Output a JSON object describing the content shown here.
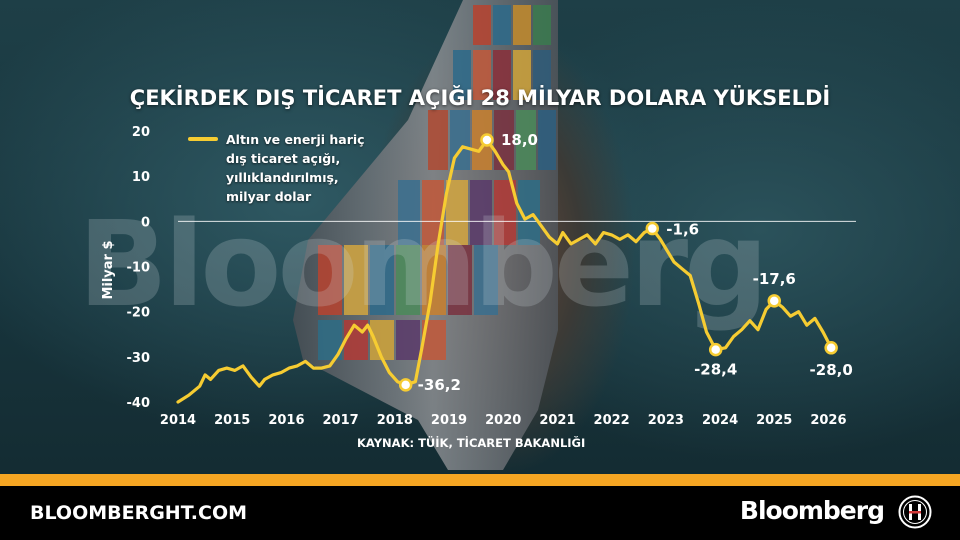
{
  "title": "ÇEKİRDEK DIŞ TİCARET AÇIĞI 28 MİLYAR DOLARA YÜKSELDİ",
  "source": "KAYNAK: TÜİK, TİCARET BAKANLIĞI",
  "watermark": "Bloomberg",
  "footer": {
    "site": "BLOOMBERGHT.COM",
    "brand": "Bloomberg"
  },
  "colors": {
    "line": "#f6cc32",
    "accent_bar": "#f5a623"
  },
  "chart_data": {
    "type": "line",
    "title": "ÇEKİRDEK DIŞ TİCARET AÇIĞI 28 MİLYAR DOLARA YÜKSELDİ",
    "ylabel": "Milyar $",
    "xlabel": "",
    "ylim": [
      -40,
      20
    ],
    "xlim": [
      2014,
      2026.25
    ],
    "yticks": [
      "20",
      "10",
      "0",
      "-10",
      "-20",
      "-30",
      "-40"
    ],
    "ytick_values": [
      20,
      10,
      0,
      -10,
      -20,
      -30,
      -40
    ],
    "xticks": [
      "2014",
      "2015",
      "2016",
      "2017",
      "2018",
      "2019",
      "2020",
      "2021",
      "2022",
      "2023",
      "2024",
      "2025",
      "2026"
    ],
    "xtick_values": [
      2014,
      2015,
      2016,
      2017,
      2018,
      2019,
      2020,
      2021,
      2022,
      2023,
      2024,
      2025,
      2026
    ],
    "grid": false,
    "legend_position": "top-left",
    "series": [
      {
        "name": "Altın ve enerji hariç dış ticaret açığı, yıllıklandırılmış, milyar dolar",
        "x": [
          2014.0,
          2014.2,
          2014.4,
          2014.5,
          2014.6,
          2014.75,
          2014.9,
          2015.05,
          2015.2,
          2015.35,
          2015.5,
          2015.6,
          2015.75,
          2015.9,
          2016.05,
          2016.2,
          2016.35,
          2016.5,
          2016.65,
          2016.8,
          2016.95,
          2017.1,
          2017.25,
          2017.4,
          2017.5,
          2017.6,
          2017.75,
          2017.9,
          2018.05,
          2018.2,
          2018.38,
          2018.5,
          2018.65,
          2018.8,
          2018.95,
          2019.1,
          2019.25,
          2019.4,
          2019.55,
          2019.7,
          2019.85,
          2020.0,
          2020.1,
          2020.25,
          2020.4,
          2020.55,
          2020.7,
          2020.85,
          2021.0,
          2021.1,
          2021.25,
          2021.4,
          2021.55,
          2021.7,
          2021.85,
          2022.0,
          2022.15,
          2022.3,
          2022.45,
          2022.6,
          2022.75,
          2022.9,
          2023.0,
          2023.15,
          2023.3,
          2023.45,
          2023.6,
          2023.75,
          2023.92,
          2024.1,
          2024.25,
          2024.4,
          2024.55,
          2024.7,
          2024.85,
          2025.0,
          2025.15,
          2025.3,
          2025.45,
          2025.6,
          2025.75,
          2025.9,
          2026.05
        ],
        "values": [
          -40.0,
          -38.5,
          -36.5,
          -34.0,
          -35.0,
          -33.0,
          -32.5,
          -33.0,
          -32.0,
          -34.5,
          -36.5,
          -35.0,
          -34.0,
          -33.5,
          -32.5,
          -32.0,
          -31.0,
          -32.5,
          -32.5,
          -32.0,
          -29.5,
          -26.0,
          -23.0,
          -24.5,
          -23.0,
          -25.5,
          -30.0,
          -33.5,
          -35.5,
          -36.2,
          -35.5,
          -28.0,
          -18.0,
          -5.0,
          6.0,
          14.0,
          16.5,
          16.0,
          15.5,
          18.0,
          15.5,
          12.5,
          11.0,
          4.0,
          0.5,
          1.5,
          -1.0,
          -3.5,
          -5.0,
          -2.5,
          -5.0,
          -4.0,
          -3.0,
          -5.0,
          -2.5,
          -3.0,
          -4.0,
          -3.0,
          -4.5,
          -2.5,
          -1.6,
          -4.0,
          -6.0,
          -9.0,
          -10.5,
          -12.0,
          -18.0,
          -24.5,
          -28.4,
          -28.0,
          -25.5,
          -24.0,
          -22.0,
          -24.0,
          -19.5,
          -17.6,
          -19.0,
          -21.0,
          -20.0,
          -23.0,
          -21.5,
          -24.5,
          -28.0
        ]
      }
    ],
    "annotations": [
      {
        "x": 2018.2,
        "y": -36.2,
        "label": "-36,2"
      },
      {
        "x": 2019.7,
        "y": 18.0,
        "label": "18,0"
      },
      {
        "x": 2022.75,
        "y": -1.6,
        "label": "-1,6"
      },
      {
        "x": 2023.92,
        "y": -28.4,
        "label": "-28,4"
      },
      {
        "x": 2025.0,
        "y": -17.6,
        "label": "-17,6"
      },
      {
        "x": 2026.05,
        "y": -28.0,
        "label": "-28,0"
      }
    ]
  }
}
